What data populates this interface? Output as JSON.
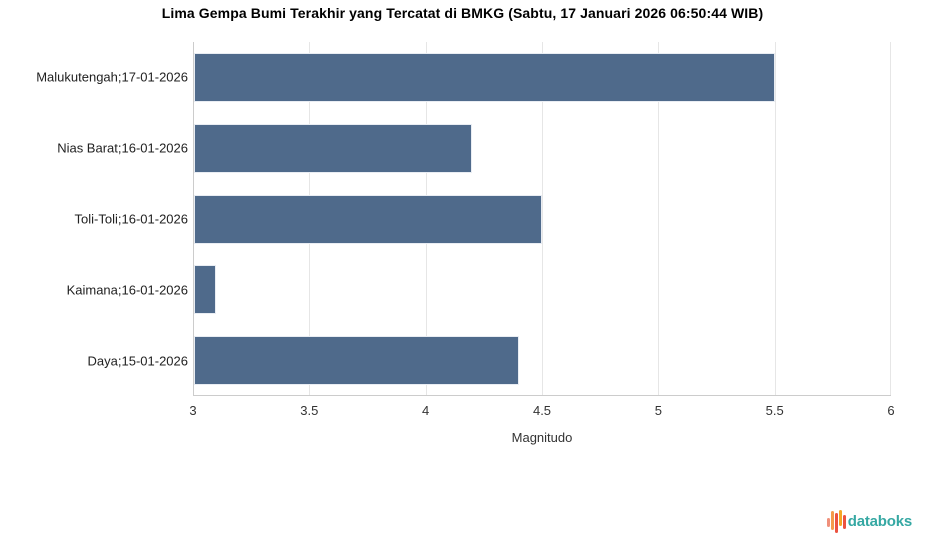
{
  "title": "Lima Gempa Bumi Terakhir yang Tercatat di BMKG (Sabtu, 17 Januari 2026 06:50:44 WIB)",
  "chart_data": {
    "type": "bar",
    "orientation": "horizontal",
    "categories": [
      "Malukutengah;17-01-2026",
      "Nias Barat;16-01-2026",
      "Toli-Toli;16-01-2026",
      "Kaimana;16-01-2026",
      "Daya;15-01-2026"
    ],
    "values": [
      5.5,
      4.2,
      4.5,
      3.1,
      4.4
    ],
    "xlabel": "Magnitudo",
    "xlim": [
      3,
      6
    ],
    "xticks": [
      3,
      3.5,
      4,
      4.5,
      5,
      5.5,
      6
    ],
    "xtick_labels": [
      "3",
      "3.5",
      "4",
      "4.5",
      "5",
      "5.5",
      "6"
    ],
    "bar_color": "#4f6a8b",
    "bar_border_color": "#e9edf3",
    "grid_color": "#e6e6e6",
    "axis_color": "#cccccc",
    "grid": true,
    "legend_position": "none"
  },
  "branding": {
    "logo_text": "databoks",
    "logo_text_color": "#35a8a3",
    "logo_icon": "pulse-bars-icon",
    "logo_icon_bars": [
      {
        "height": 9,
        "offset": 1,
        "color": "#f0907b"
      },
      {
        "height": 19,
        "offset": -1,
        "color": "#f59b4b"
      },
      {
        "height": 20,
        "offset": 2,
        "color": "#ec5240"
      },
      {
        "height": 16,
        "offset": -3,
        "color": "#f5a623"
      },
      {
        "height": 14,
        "offset": 1,
        "color": "#ec5240"
      }
    ]
  }
}
